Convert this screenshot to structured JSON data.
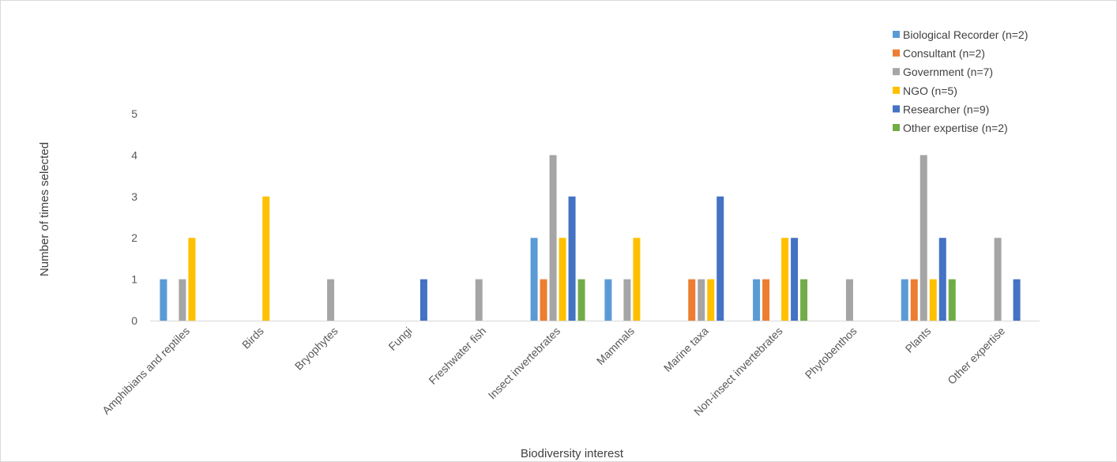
{
  "chart_data": {
    "type": "bar",
    "xlabel": "Biodiversity interest",
    "ylabel": "Number of times selected",
    "ylim": [
      0,
      5
    ],
    "yticks": [
      0,
      1,
      2,
      3,
      4,
      5
    ],
    "grid": false,
    "legend_position": "top-right",
    "categories": [
      "Amphibians and reptiles",
      "Birds",
      "Bryophytes",
      "Fungi",
      "Freshwater fish",
      "Insect invertebrates",
      "Mammals",
      "Marine taxa",
      "Non-insect invertebrates",
      "Phytobenthos",
      "Plants",
      "Other expertise"
    ],
    "series": [
      {
        "name": "Biological Recorder (n=2)",
        "color": "#5b9bd5",
        "values": [
          1,
          0,
          0,
          0,
          0,
          2,
          1,
          0,
          1,
          0,
          1,
          0
        ]
      },
      {
        "name": "Consultant (n=2)",
        "color": "#ed7d31",
        "values": [
          0,
          0,
          0,
          0,
          0,
          1,
          0,
          1,
          1,
          0,
          1,
          0
        ]
      },
      {
        "name": "Government (n=7)",
        "color": "#a5a5a5",
        "values": [
          1,
          0,
          1,
          0,
          1,
          4,
          1,
          1,
          0,
          1,
          4,
          2
        ]
      },
      {
        "name": "NGO (n=5)",
        "color": "#ffc000",
        "values": [
          2,
          3,
          0,
          0,
          0,
          2,
          2,
          1,
          2,
          0,
          1,
          0
        ]
      },
      {
        "name": "Researcher (n=9)",
        "color": "#4472c4",
        "values": [
          0,
          0,
          0,
          1,
          0,
          3,
          0,
          3,
          2,
          0,
          2,
          1
        ]
      },
      {
        "name": "Other expertise (n=2)",
        "color": "#70ad47",
        "values": [
          0,
          0,
          0,
          0,
          0,
          1,
          0,
          0,
          1,
          0,
          1,
          0
        ]
      }
    ]
  }
}
